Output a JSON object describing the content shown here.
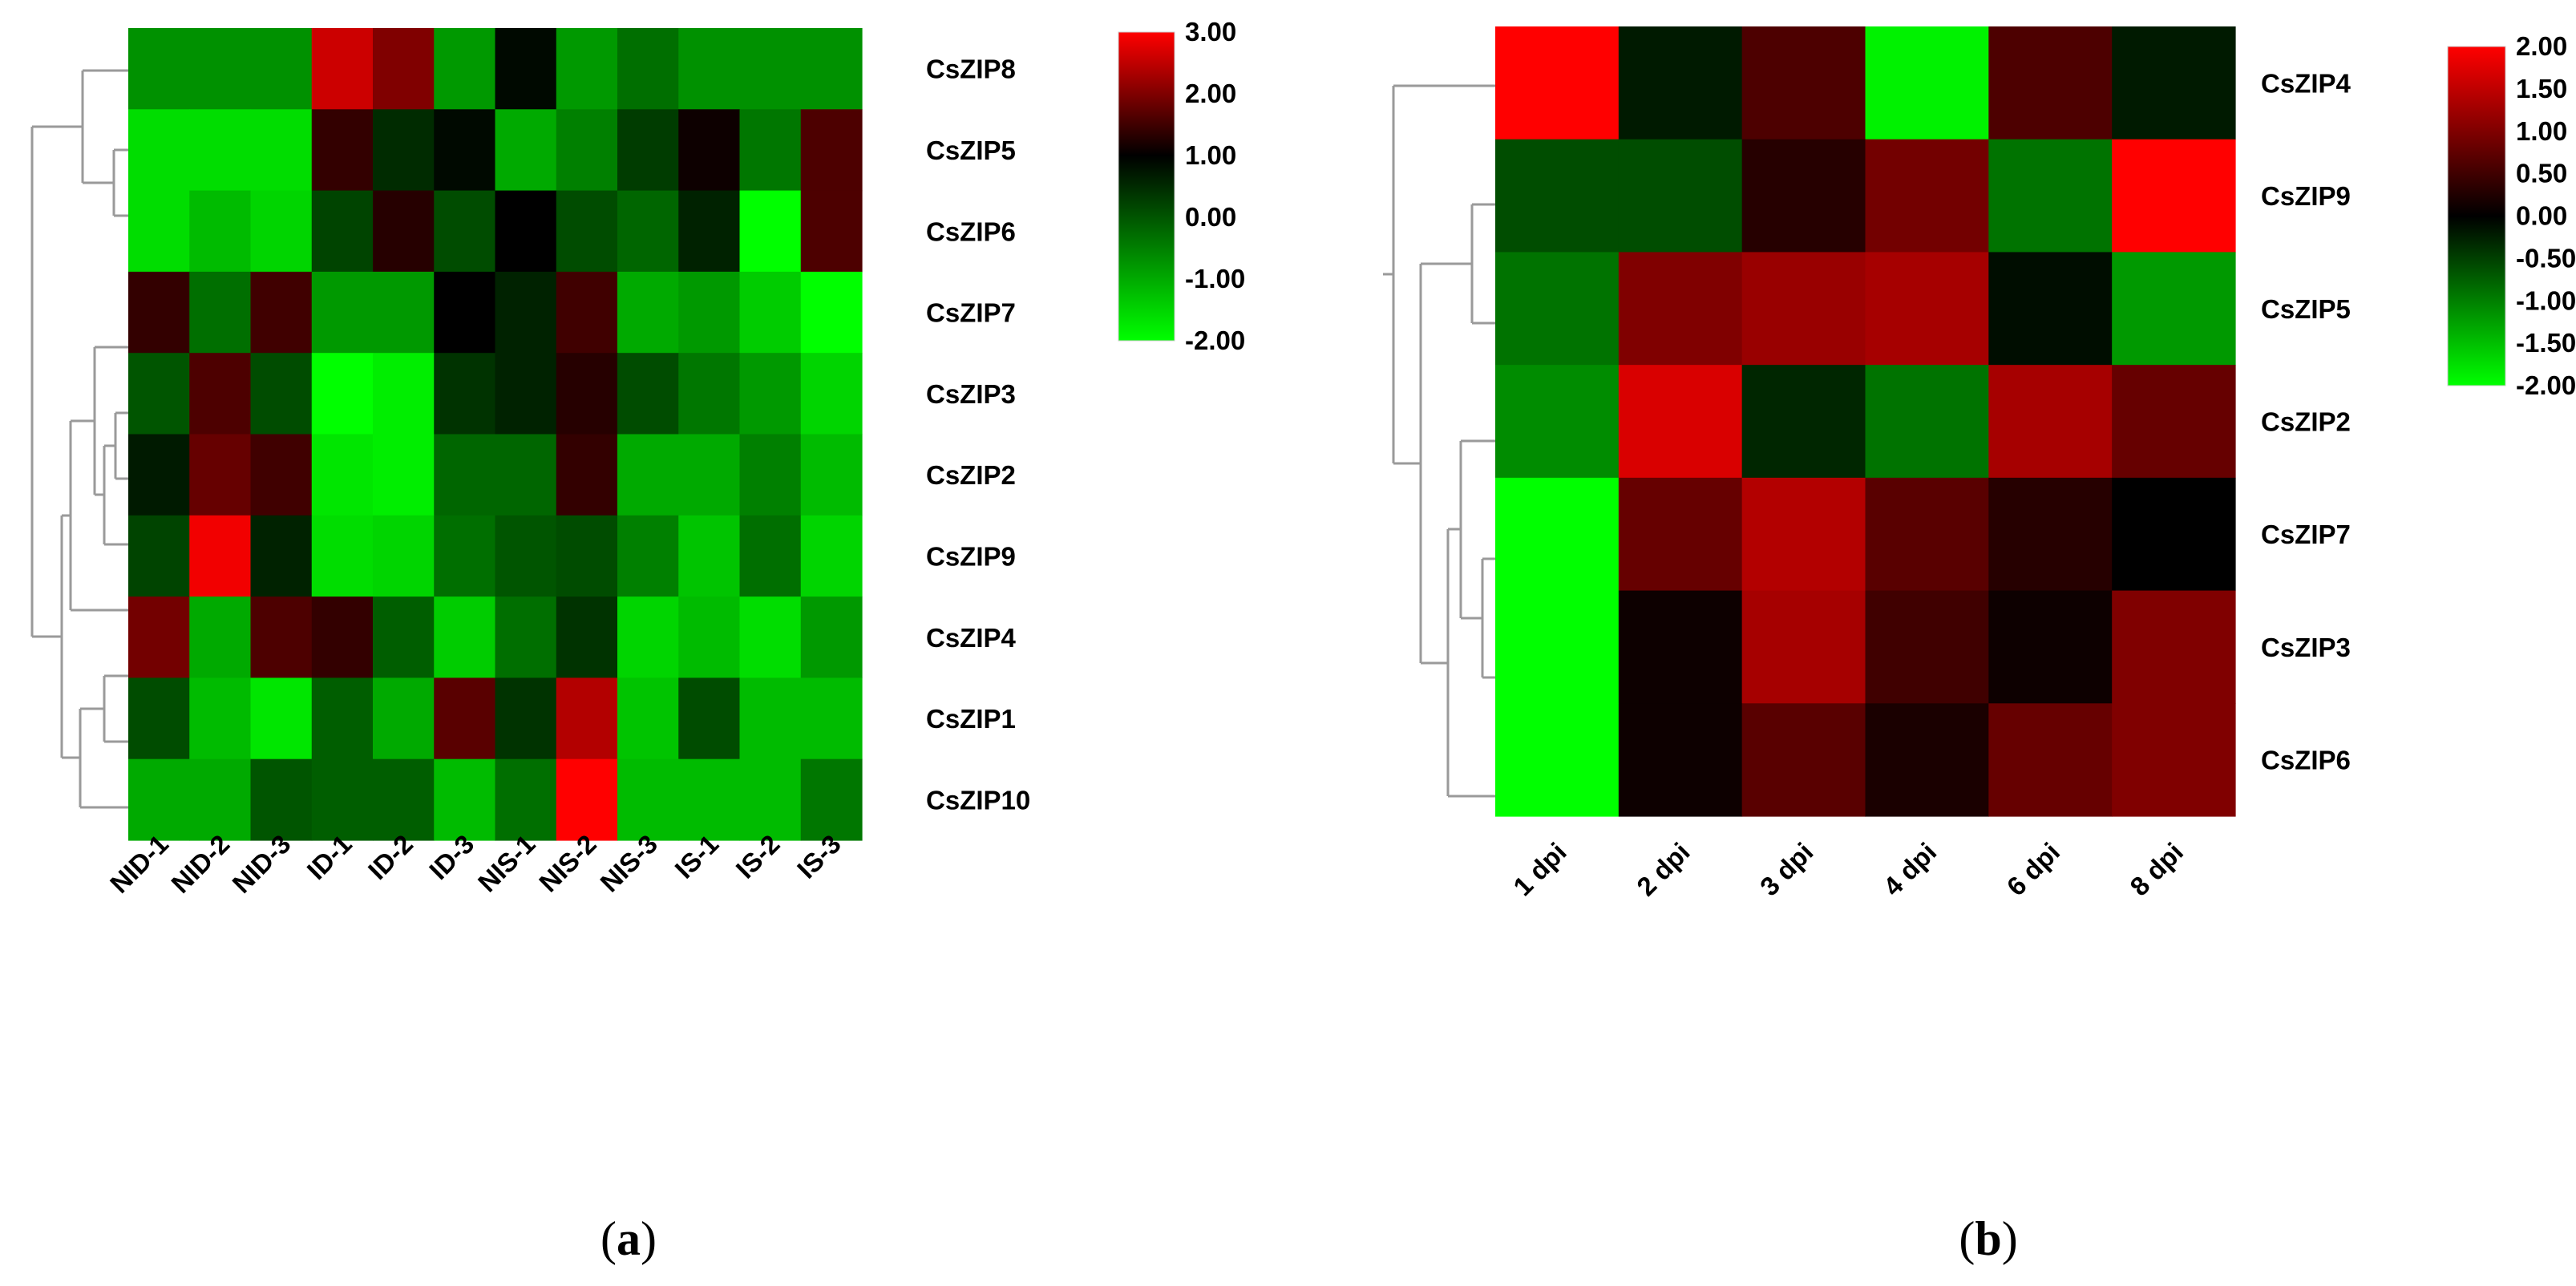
{
  "chart_data": [
    {
      "type": "heatmap",
      "panel": "a",
      "caption": "(a)",
      "rows": [
        "CsZIP8",
        "CsZIP5",
        "CsZIP6",
        "CsZIP7",
        "CsZIP3",
        "CsZIP2",
        "CsZIP9",
        "CsZIP4",
        "CsZIP1",
        "CsZIP10"
      ],
      "columns": [
        "NID-1",
        "NID-2",
        "NID-3",
        "ID-1",
        "ID-2",
        "ID-3",
        "NIS-1",
        "NIS-2",
        "NIS-3",
        "IS-1",
        "IS-2",
        "IS-3"
      ],
      "values": [
        [
          -0.7,
          -0.7,
          -0.7,
          2.6,
          2.0,
          -0.8,
          0.9,
          -0.8,
          -0.3,
          -0.7,
          -0.7,
          -0.7
        ],
        [
          -1.6,
          -1.6,
          -1.6,
          1.4,
          0.5,
          0.9,
          -1.0,
          -0.5,
          0.3,
          1.1,
          -0.4,
          1.6
        ],
        [
          -1.6,
          -1.2,
          -1.5,
          0.2,
          1.3,
          0.1,
          1.0,
          0.1,
          -0.2,
          0.6,
          -2.0,
          1.6
        ],
        [
          1.4,
          -0.3,
          1.5,
          -0.8,
          -0.8,
          1.0,
          0.6,
          1.5,
          -1.0,
          -0.8,
          -1.4,
          -2.0
        ],
        [
          0.0,
          1.6,
          0.1,
          -2.0,
          -1.8,
          0.4,
          0.6,
          1.3,
          0.1,
          -0.4,
          -0.8,
          -1.5
        ],
        [
          0.7,
          1.8,
          1.5,
          -1.7,
          -1.8,
          -0.2,
          -0.2,
          1.4,
          -1.0,
          -1.0,
          -0.5,
          -1.2
        ],
        [
          0.2,
          2.9,
          0.6,
          -1.6,
          -1.5,
          -0.3,
          0.0,
          0.1,
          -0.5,
          -1.3,
          -0.3,
          -1.5
        ],
        [
          1.9,
          -1.0,
          1.6,
          1.4,
          -0.1,
          -1.4,
          -0.3,
          0.4,
          -1.5,
          -1.2,
          -1.6,
          -0.8
        ],
        [
          0.1,
          -1.2,
          -1.7,
          -0.1,
          -1.0,
          1.7,
          0.4,
          2.4,
          -1.3,
          0.1,
          -1.2,
          -1.2
        ],
        [
          -1.0,
          -1.0,
          0.0,
          -0.1,
          -0.1,
          -1.2,
          -0.3,
          3.0,
          -1.2,
          -1.2,
          -1.2,
          -0.4
        ]
      ],
      "color_scale": {
        "ticks": [
          "3.00",
          "2.00",
          "1.00",
          "0.00",
          "-1.00",
          "-2.00"
        ],
        "min": -2.0,
        "mid": 1.0,
        "max": 3.0,
        "low_color": "#00ff00",
        "mid_color": "#000000",
        "high_color": "#ff0000"
      },
      "row_dendrogram": true
    },
    {
      "type": "heatmap",
      "panel": "b",
      "caption": "(b)",
      "rows": [
        "CsZIP4",
        "CsZIP9",
        "CsZIP5",
        "CsZIP2",
        "CsZIP7",
        "CsZIP3",
        "CsZIP6"
      ],
      "columns": [
        "1 dpi",
        "2 dpi",
        "3 dpi",
        "4 dpi",
        "6 dpi",
        "8 dpi"
      ],
      "values": [
        [
          2.0,
          -0.2,
          0.6,
          -1.9,
          0.6,
          -0.2
        ],
        [
          -0.6,
          -0.6,
          0.3,
          0.9,
          -0.9,
          2.0
        ],
        [
          -0.9,
          1.0,
          1.2,
          1.3,
          -0.1,
          -1.2
        ],
        [
          -1.1,
          1.7,
          -0.3,
          -0.9,
          1.3,
          0.8
        ],
        [
          -2.0,
          0.8,
          1.4,
          0.7,
          0.3,
          0.0
        ],
        [
          -2.0,
          0.1,
          1.3,
          0.5,
          0.1,
          1.0
        ],
        [
          -2.0,
          0.1,
          0.7,
          0.2,
          0.8,
          1.0
        ]
      ],
      "color_scale": {
        "ticks": [
          "2.00",
          "1.50",
          "1.00",
          "0.50",
          "0.00",
          "-0.50",
          "-1.00",
          "-1.50",
          "-2.00"
        ],
        "min": -2.0,
        "mid": 0.0,
        "max": 2.0,
        "low_color": "#00ff00",
        "mid_color": "#000000",
        "high_color": "#ff0000"
      },
      "row_dendrogram": true
    }
  ]
}
